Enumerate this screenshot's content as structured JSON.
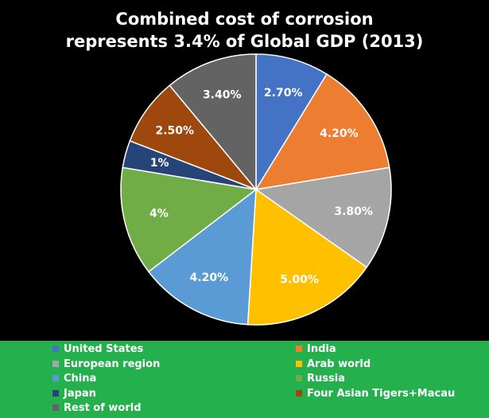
{
  "chart_data": {
    "type": "pie",
    "title_lines": [
      "Combined cost of corrosion",
      "represents 3.4% of Global GDP (2013)"
    ],
    "slices": [
      {
        "name": "United States",
        "value": 2.7,
        "label": "2.70%",
        "color": "#4472c4"
      },
      {
        "name": "India",
        "value": 4.2,
        "label": "4.20%",
        "color": "#ed7d31"
      },
      {
        "name": "European region",
        "value": 3.8,
        "label": "3.80%",
        "color": "#a5a5a5"
      },
      {
        "name": "Arab world",
        "value": 5.0,
        "label": "5.00%",
        "color": "#ffc000"
      },
      {
        "name": "China",
        "value": 4.2,
        "label": "4.20%",
        "color": "#5b9bd5"
      },
      {
        "name": "Russia",
        "value": 4.0,
        "label": "4%",
        "color": "#70ad47"
      },
      {
        "name": "Japan",
        "value": 1.0,
        "label": "1%",
        "color": "#264478"
      },
      {
        "name": "Four Asian Tigers+Macau",
        "value": 2.5,
        "label": "2.50%",
        "color": "#9e480e"
      },
      {
        "name": "Rest of world",
        "value": 3.4,
        "label": "3.40%",
        "color": "#636363"
      }
    ],
    "legend": {
      "placement": "bottom",
      "columns": 2,
      "background": "#24b14d"
    }
  }
}
